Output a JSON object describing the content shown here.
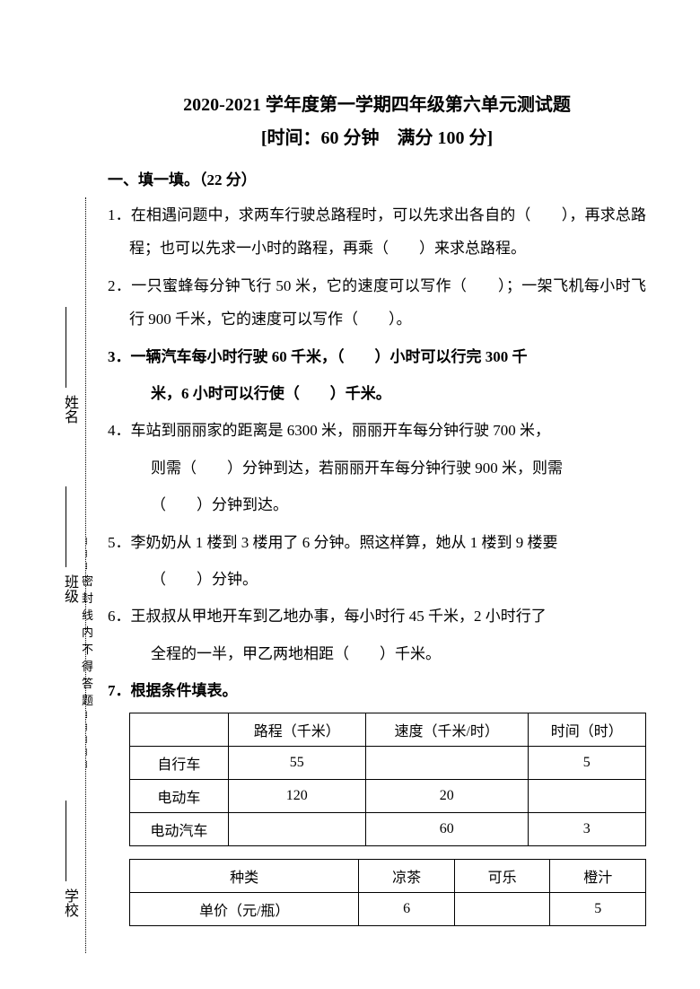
{
  "title": "2020-2021 学年度第一学期四年级第六单元测试题",
  "subtitle": "[时间：60 分钟　满分 100 分]",
  "section1": {
    "header": "一、填一填。（22 分）",
    "q1": "1．在相遇问题中，求两车行驶总路程时，可以先求出各自的（　　），再求总路程；也可以先求一小时的路程，再乘（　　）来求总路程。",
    "q2": "2．一只蜜蜂每分钟飞行 50 米，它的速度可以写作（　　）；一架飞机每小时飞行 900 千米，它的速度可以写作（　　）。",
    "q3_line1": "3．一辆汽车每小时行驶 60 千米，（　　）小时可以行完 300 千",
    "q3_line2": "米，6 小时可以行使（　　）千米。",
    "q4_line1": "4．车站到丽丽家的距离是 6300 米，丽丽开车每分钟行驶 700 米，",
    "q4_line2": "则需（　　）分钟到达，若丽丽开车每分钟行驶 900 米，则需",
    "q4_line3": "（　　）分钟到达。",
    "q5_line1": "5．李奶奶从 1 楼到 3 楼用了 6 分钟。照这样算，她从 1 楼到 9 楼要",
    "q5_line2": "（　　）分钟。",
    "q6_line1": "6．王叔叔从甲地开车到乙地办事，每小时行 45 千米，2 小时行了",
    "q6_line2": "全程的一半，甲乙两地相距（　　）千米。",
    "q7": "7．根据条件填表。"
  },
  "table1": {
    "headers": [
      "",
      "路程（千米）",
      "速度（千米/时）",
      "时间（时）"
    ],
    "rows": [
      [
        "自行车",
        "55",
        "",
        "5"
      ],
      [
        "电动车",
        "120",
        "20",
        ""
      ],
      [
        "电动汽车",
        "",
        "60",
        "3"
      ]
    ]
  },
  "table2": {
    "headers": [
      "种类",
      "凉茶",
      "可乐",
      "橙汁"
    ],
    "row1": [
      "单价（元/瓶）",
      "6",
      "",
      "5"
    ]
  },
  "sidebar": {
    "school": "学校",
    "class": "班级",
    "name": "姓名",
    "seal": "┈┈┈密封线内不得答题┈┈┈┈┈"
  }
}
